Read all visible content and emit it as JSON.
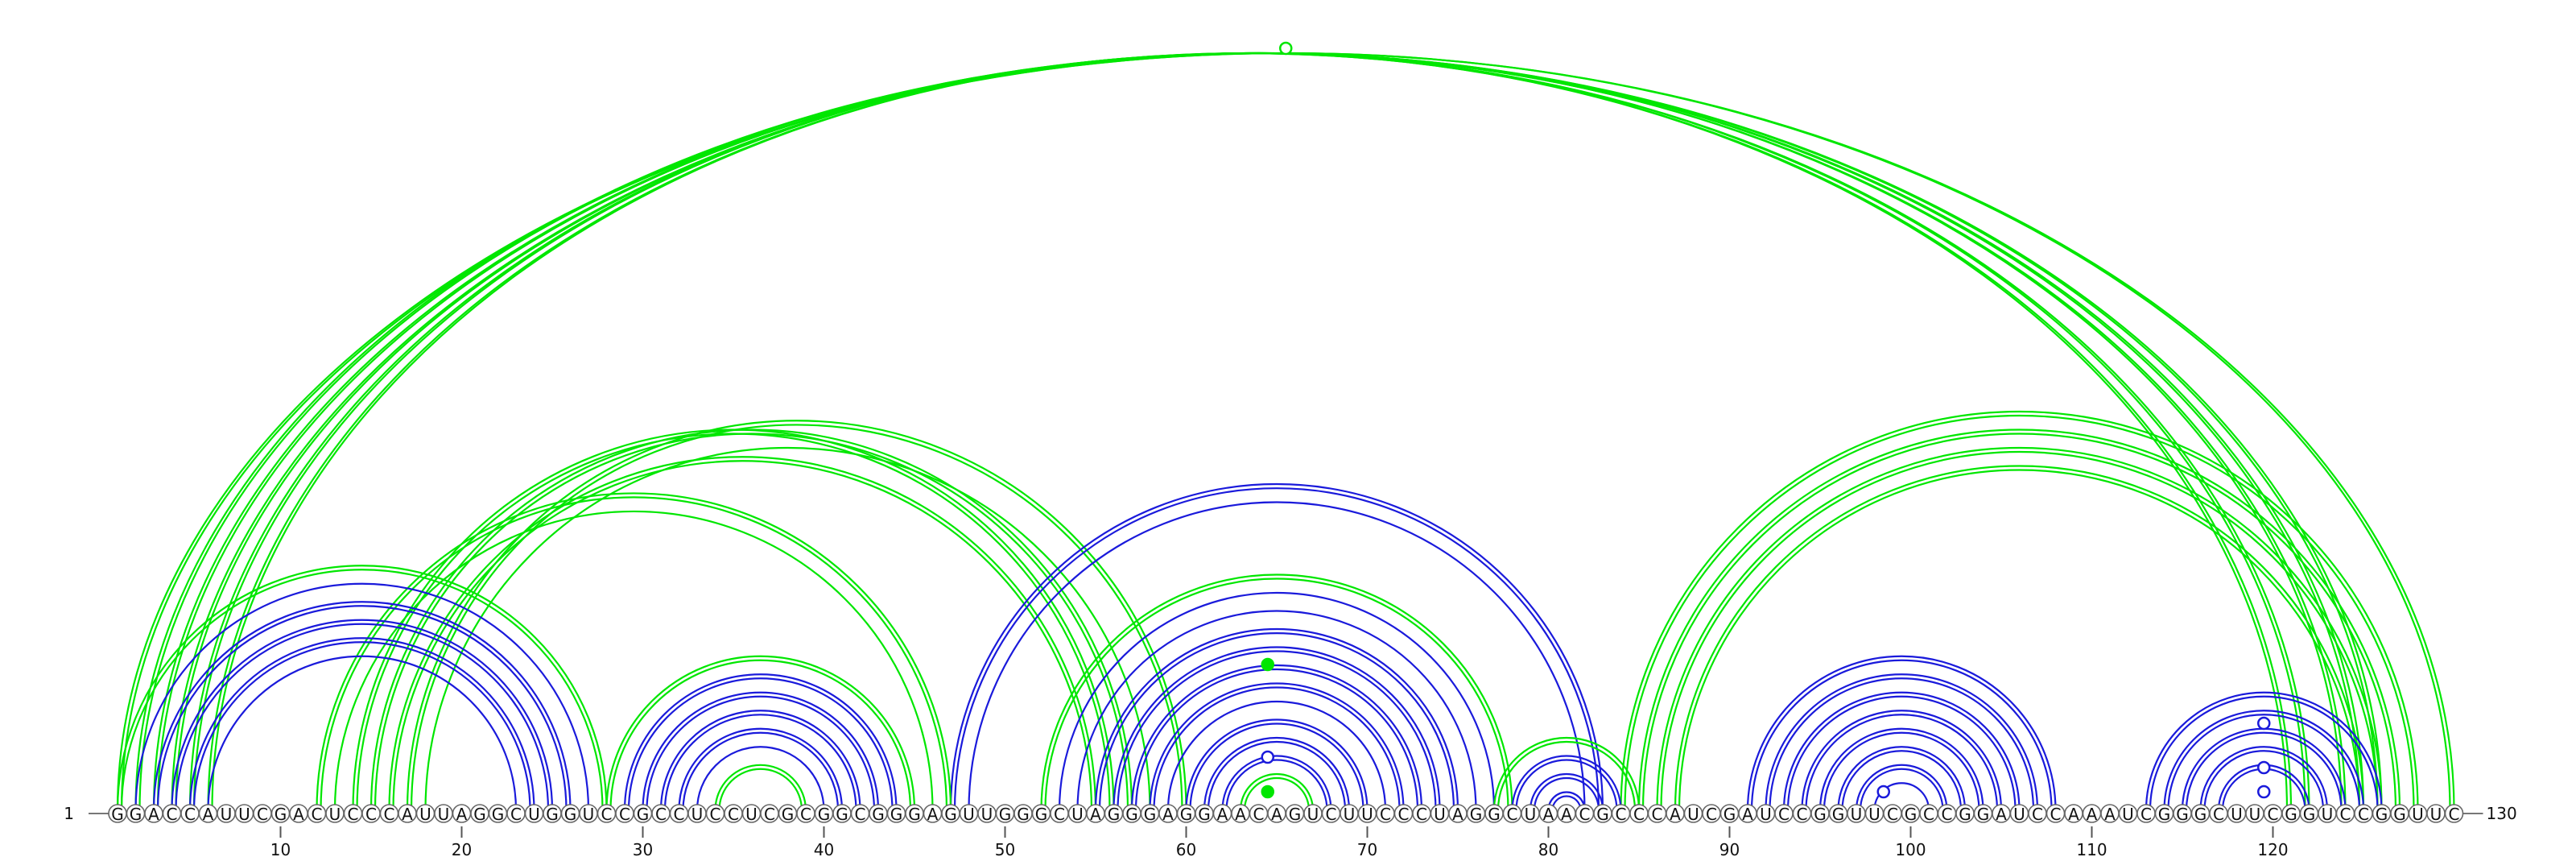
{
  "chart_data": {
    "type": "arc",
    "sequence": "GGACCAUUCGACUCCCAUUAGGCUGGUCCGCCUCCUCGCGGCGGGAGUUGGGCUAGGGAGGAACAGUCUUCCCUAGGCUAACGCCCAUCGAUCCGGUUCGCCGGAUCCAAAUCGGGCUUCGGUCCGGUUC",
    "start_label": "1",
    "end_label": "130",
    "ticks": [
      10,
      20,
      30,
      40,
      50,
      60,
      70,
      80,
      90,
      100,
      110,
      120
    ],
    "colors": {
      "green": "#00e600",
      "blue": "#1a1adb"
    },
    "arcs": [
      {
        "i": 1,
        "j": 130,
        "color": "green",
        "style": "double"
      },
      {
        "i": 2,
        "j": 126,
        "color": "green",
        "style": "double"
      },
      {
        "i": 3,
        "j": 125,
        "color": "green",
        "style": "double"
      },
      {
        "i": 4,
        "j": 124,
        "color": "green",
        "style": "double"
      },
      {
        "i": 5,
        "j": 122,
        "color": "green",
        "style": "double"
      },
      {
        "i": 6,
        "j": 121,
        "color": "green",
        "style": "double"
      },
      {
        "i": 1,
        "j": 28,
        "color": "green",
        "style": "double"
      },
      {
        "i": 2,
        "j": 27,
        "color": "blue",
        "style": "single"
      },
      {
        "i": 3,
        "j": 26,
        "color": "blue",
        "style": "double"
      },
      {
        "i": 4,
        "j": 25,
        "color": "blue",
        "style": "double"
      },
      {
        "i": 5,
        "j": 24,
        "color": "blue",
        "style": "double"
      },
      {
        "i": 6,
        "j": 23,
        "color": "blue",
        "style": "single"
      },
      {
        "i": 12,
        "j": 47,
        "color": "green",
        "style": "double"
      },
      {
        "i": 13,
        "j": 46,
        "color": "green",
        "style": "single"
      },
      {
        "i": 14,
        "j": 56,
        "color": "green",
        "style": "double"
      },
      {
        "i": 15,
        "j": 57,
        "color": "green",
        "style": "double"
      },
      {
        "i": 16,
        "j": 55,
        "color": "green",
        "style": "double"
      },
      {
        "i": 17,
        "j": 60,
        "color": "green",
        "style": "double"
      },
      {
        "i": 18,
        "j": 58,
        "color": "green",
        "style": "single"
      },
      {
        "i": 28,
        "j": 45,
        "color": "green",
        "style": "double"
      },
      {
        "i": 29,
        "j": 44,
        "color": "blue",
        "style": "double"
      },
      {
        "i": 30,
        "j": 43,
        "color": "blue",
        "style": "double"
      },
      {
        "i": 31,
        "j": 42,
        "color": "blue",
        "style": "double"
      },
      {
        "i": 32,
        "j": 41,
        "color": "blue",
        "style": "double"
      },
      {
        "i": 33,
        "j": 40,
        "color": "blue",
        "style": "single"
      },
      {
        "i": 34,
        "j": 39,
        "color": "green",
        "style": "double"
      },
      {
        "i": 47,
        "j": 83,
        "color": "blue",
        "style": "double"
      },
      {
        "i": 48,
        "j": 82,
        "color": "blue",
        "style": "single"
      },
      {
        "i": 52,
        "j": 78,
        "color": "green",
        "style": "double"
      },
      {
        "i": 53,
        "j": 77,
        "color": "blue",
        "style": "single"
      },
      {
        "i": 54,
        "j": 76,
        "color": "blue",
        "style": "single"
      },
      {
        "i": 55,
        "j": 75,
        "color": "blue",
        "style": "double"
      },
      {
        "i": 56,
        "j": 74,
        "color": "blue",
        "style": "double"
      },
      {
        "i": 57,
        "j": 73,
        "color": "blue",
        "style": "double"
      },
      {
        "i": 58,
        "j": 72,
        "color": "blue",
        "style": "double"
      },
      {
        "i": 59,
        "j": 71,
        "color": "blue",
        "style": "single"
      },
      {
        "i": 60,
        "j": 70,
        "color": "blue",
        "style": "double"
      },
      {
        "i": 61,
        "j": 69,
        "color": "blue",
        "style": "double"
      },
      {
        "i": 62,
        "j": 68,
        "color": "blue",
        "style": "double"
      },
      {
        "i": 63,
        "j": 67,
        "color": "green",
        "style": "double"
      },
      {
        "i": 77,
        "j": 85,
        "color": "green",
        "style": "double"
      },
      {
        "i": 78,
        "j": 84,
        "color": "blue",
        "style": "double"
      },
      {
        "i": 79,
        "j": 83,
        "color": "blue",
        "style": "double"
      },
      {
        "i": 80,
        "j": 82,
        "color": "blue",
        "style": "double"
      },
      {
        "i": 84,
        "j": 128,
        "color": "green",
        "style": "double"
      },
      {
        "i": 85,
        "j": 127,
        "color": "green",
        "style": "double"
      },
      {
        "i": 86,
        "j": 126,
        "color": "green",
        "style": "double"
      },
      {
        "i": 87,
        "j": 125,
        "color": "green",
        "style": "double"
      },
      {
        "i": 91,
        "j": 108,
        "color": "blue",
        "style": "double"
      },
      {
        "i": 92,
        "j": 107,
        "color": "blue",
        "style": "double"
      },
      {
        "i": 93,
        "j": 106,
        "color": "blue",
        "style": "double"
      },
      {
        "i": 94,
        "j": 105,
        "color": "blue",
        "style": "double"
      },
      {
        "i": 95,
        "j": 104,
        "color": "blue",
        "style": "double"
      },
      {
        "i": 96,
        "j": 103,
        "color": "blue",
        "style": "double"
      },
      {
        "i": 97,
        "j": 102,
        "color": "blue",
        "style": "double"
      },
      {
        "i": 98,
        "j": 101,
        "color": "blue",
        "style": "single"
      },
      {
        "i": 113,
        "j": 126,
        "color": "blue",
        "style": "double"
      },
      {
        "i": 114,
        "j": 125,
        "color": "blue",
        "style": "double"
      },
      {
        "i": 115,
        "j": 124,
        "color": "blue",
        "style": "double"
      },
      {
        "i": 116,
        "j": 123,
        "color": "blue",
        "style": "double"
      },
      {
        "i": 117,
        "j": 122,
        "color": "blue",
        "style": "double"
      }
    ],
    "markers": [
      {
        "position": 65.5,
        "height": 0.95,
        "color": "green",
        "filled": false
      },
      {
        "position": 64.5,
        "height": 0.185,
        "color": "green",
        "filled": true
      },
      {
        "position": 64.5,
        "height": 0.07,
        "color": "blue",
        "filled": false
      },
      {
        "position": 64.5,
        "height": 0.027,
        "color": "green",
        "filled": true
      },
      {
        "position": 98.5,
        "height": 0.027,
        "color": "blue",
        "filled": false
      },
      {
        "position": 119.5,
        "height": 0.112,
        "color": "blue",
        "filled": false
      },
      {
        "position": 119.5,
        "height": 0.057,
        "color": "blue",
        "filled": false
      },
      {
        "position": 119.5,
        "height": 0.027,
        "color": "blue",
        "filled": false
      }
    ]
  }
}
